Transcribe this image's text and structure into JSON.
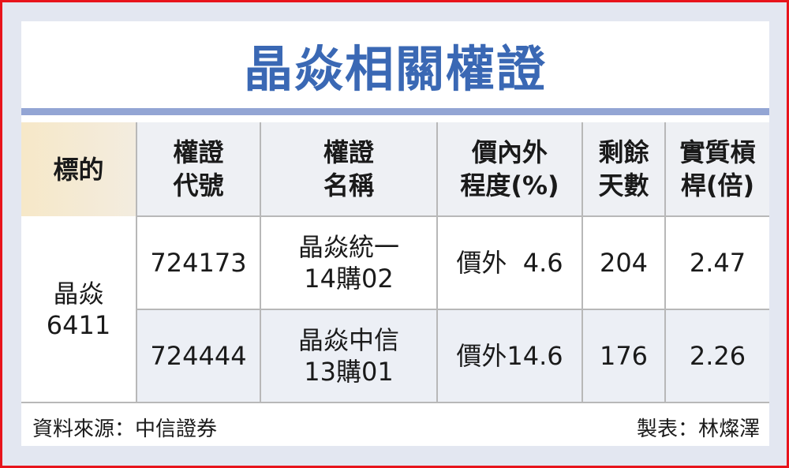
{
  "title": "晶焱相關權證",
  "headers": [
    [
      "標的"
    ],
    [
      "權證",
      "代號"
    ],
    [
      "權證",
      "名稱"
    ],
    [
      "價內外",
      "程度(%)"
    ],
    [
      "剩餘",
      "天數"
    ],
    [
      "實質槓",
      "桿(倍)"
    ]
  ],
  "underlying": [
    "晶焱",
    "6411"
  ],
  "rows": [
    {
      "code": "724173",
      "name": [
        "晶焱統一",
        "14購02"
      ],
      "moneyness": "價外  4.6",
      "days": "204",
      "leverage": "2.47"
    },
    {
      "code": "724444",
      "name": [
        "晶焱中信",
        "13購01"
      ],
      "moneyness": "價外14.6",
      "days": "176",
      "leverage": "2.26"
    }
  ],
  "footer": {
    "source": "資料來源：中信證券",
    "maker": "製表：林燦澤"
  },
  "colors": {
    "title": "#3a68b4",
    "rule": "#93a5d4",
    "border": "#e8141c",
    "header_first": "#f6e8c8"
  }
}
